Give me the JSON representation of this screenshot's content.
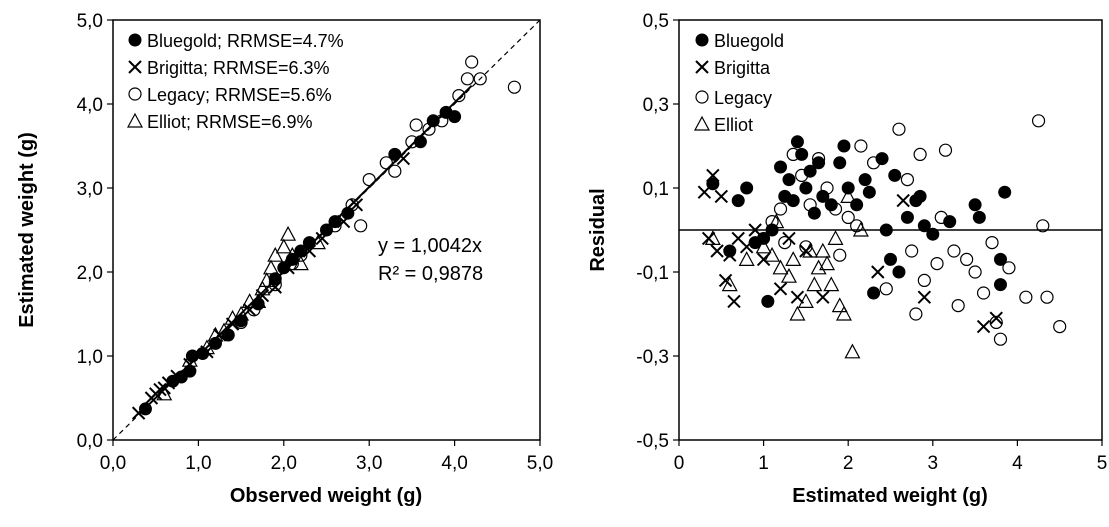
{
  "chart_data": [
    {
      "type": "scatter",
      "xlabel": "Observed weight (g)",
      "ylabel": "Estimated weight (g)",
      "xlim": [
        0,
        5
      ],
      "ylim": [
        0,
        5
      ],
      "xticks": [
        "0,0",
        "1,0",
        "2,0",
        "3,0",
        "4,0",
        "5,0"
      ],
      "yticks": [
        "0,0",
        "1,0",
        "2,0",
        "3,0",
        "4,0",
        "5,0"
      ],
      "grid": false,
      "legend_position": "top-left",
      "annotation": [
        "y = 1,0042x",
        "R² = 0,9878"
      ],
      "reference_line": {
        "style": "dashed",
        "slope": 1
      },
      "fit_line": {
        "style": "solid",
        "slope": 1.0042
      },
      "series": [
        {
          "name": "Bluegold; RRMSE=4.7%",
          "marker": "filled-circle",
          "points": [
            [
              0.38,
              0.37
            ],
            [
              0.7,
              0.7
            ],
            [
              0.8,
              0.75
            ],
            [
              0.9,
              0.82
            ],
            [
              0.93,
              1.0
            ],
            [
              1.05,
              1.03
            ],
            [
              1.2,
              1.15
            ],
            [
              1.35,
              1.25
            ],
            [
              1.5,
              1.42
            ],
            [
              1.7,
              1.62
            ],
            [
              1.9,
              1.92
            ],
            [
              2.0,
              2.05
            ],
            [
              2.1,
              2.15
            ],
            [
              2.2,
              2.25
            ],
            [
              2.3,
              2.35
            ],
            [
              2.5,
              2.5
            ],
            [
              2.6,
              2.6
            ],
            [
              2.75,
              2.7
            ],
            [
              3.3,
              3.4
            ],
            [
              3.6,
              3.55
            ],
            [
              3.75,
              3.8
            ],
            [
              3.9,
              3.9
            ],
            [
              4.0,
              3.85
            ]
          ]
        },
        {
          "name": "Brigitta; RRMSE=6.3%",
          "marker": "x",
          "points": [
            [
              0.3,
              0.32
            ],
            [
              0.45,
              0.5
            ],
            [
              0.5,
              0.55
            ],
            [
              0.55,
              0.6
            ],
            [
              0.6,
              0.62
            ],
            [
              0.65,
              0.68
            ],
            [
              0.75,
              0.76
            ],
            [
              0.9,
              0.9
            ],
            [
              1.1,
              1.05
            ],
            [
              1.25,
              1.25
            ],
            [
              1.4,
              1.38
            ],
            [
              1.6,
              1.55
            ],
            [
              1.75,
              1.72
            ],
            [
              1.9,
              1.82
            ],
            [
              2.05,
              2.05
            ],
            [
              2.3,
              2.25
            ],
            [
              2.45,
              2.4
            ],
            [
              2.7,
              2.6
            ],
            [
              2.85,
              2.8
            ],
            [
              3.4,
              3.35
            ]
          ]
        },
        {
          "name": "Legacy; RRMSE=5.6%",
          "marker": "open-circle",
          "points": [
            [
              1.5,
              1.4
            ],
            [
              1.65,
              1.55
            ],
            [
              1.9,
              1.85
            ],
            [
              2.1,
              2.1
            ],
            [
              2.2,
              2.2
            ],
            [
              2.6,
              2.55
            ],
            [
              2.8,
              2.8
            ],
            [
              2.9,
              2.55
            ],
            [
              3.0,
              3.1
            ],
            [
              3.2,
              3.3
            ],
            [
              3.3,
              3.2
            ],
            [
              3.5,
              3.55
            ],
            [
              3.55,
              3.75
            ],
            [
              3.7,
              3.7
            ],
            [
              3.85,
              3.8
            ],
            [
              4.05,
              4.1
            ],
            [
              4.15,
              4.3
            ],
            [
              4.2,
              4.5
            ],
            [
              4.3,
              4.3
            ],
            [
              4.7,
              4.2
            ]
          ]
        },
        {
          "name": "Elliot; RRMSE=6.9%",
          "marker": "open-triangle",
          "points": [
            [
              0.6,
              0.55
            ],
            [
              0.9,
              0.95
            ],
            [
              1.1,
              1.1
            ],
            [
              1.2,
              1.25
            ],
            [
              1.3,
              1.3
            ],
            [
              1.4,
              1.45
            ],
            [
              1.5,
              1.5
            ],
            [
              1.6,
              1.65
            ],
            [
              1.7,
              1.65
            ],
            [
              1.75,
              1.8
            ],
            [
              1.8,
              1.9
            ],
            [
              1.85,
              2.05
            ],
            [
              1.9,
              2.2
            ],
            [
              2.0,
              2.3
            ],
            [
              2.05,
              2.45
            ],
            [
              2.1,
              2.2
            ],
            [
              2.2,
              2.1
            ],
            [
              2.4,
              2.35
            ]
          ]
        }
      ]
    },
    {
      "type": "scatter",
      "xlabel": "Estimated weight (g)",
      "ylabel": "Residual",
      "xlim": [
        0,
        5
      ],
      "ylim": [
        -0.5,
        0.5
      ],
      "xticks": [
        "0",
        "1",
        "2",
        "3",
        "4",
        "5"
      ],
      "yticks": [
        "-0,5",
        "-0,3",
        "-0,1",
        "0,1",
        "0,3",
        "0,5"
      ],
      "grid": false,
      "legend_position": "top-left",
      "reference_line": {
        "style": "solid",
        "y": 0
      },
      "series": [
        {
          "name": "Bluegold",
          "marker": "filled-circle",
          "points": [
            [
              0.4,
              0.11
            ],
            [
              0.6,
              -0.05
            ],
            [
              0.7,
              0.07
            ],
            [
              0.8,
              0.1
            ],
            [
              0.9,
              -0.03
            ],
            [
              1.0,
              -0.02
            ],
            [
              1.05,
              -0.17
            ],
            [
              1.1,
              0.0
            ],
            [
              1.2,
              0.15
            ],
            [
              1.25,
              0.08
            ],
            [
              1.3,
              0.12
            ],
            [
              1.35,
              0.07
            ],
            [
              1.4,
              0.21
            ],
            [
              1.45,
              0.18
            ],
            [
              1.5,
              0.1
            ],
            [
              1.55,
              0.14
            ],
            [
              1.6,
              0.04
            ],
            [
              1.65,
              0.16
            ],
            [
              1.7,
              0.08
            ],
            [
              1.8,
              0.06
            ],
            [
              1.9,
              0.16
            ],
            [
              1.95,
              0.2
            ],
            [
              2.0,
              0.1
            ],
            [
              2.1,
              0.06
            ],
            [
              2.2,
              0.12
            ],
            [
              2.25,
              0.09
            ],
            [
              2.3,
              -0.15
            ],
            [
              2.4,
              0.17
            ],
            [
              2.45,
              0.0
            ],
            [
              2.5,
              -0.07
            ],
            [
              2.55,
              0.13
            ],
            [
              2.6,
              -0.1
            ],
            [
              2.7,
              0.03
            ],
            [
              2.8,
              0.07
            ],
            [
              2.85,
              0.08
            ],
            [
              2.9,
              0.01
            ],
            [
              3.0,
              -0.01
            ],
            [
              3.2,
              0.02
            ],
            [
              3.5,
              0.06
            ],
            [
              3.55,
              0.03
            ],
            [
              3.8,
              -0.07
            ],
            [
              3.85,
              0.09
            ],
            [
              3.8,
              -0.13
            ]
          ]
        },
        {
          "name": "Brigitta",
          "marker": "x",
          "points": [
            [
              0.3,
              0.09
            ],
            [
              0.35,
              -0.02
            ],
            [
              0.4,
              0.13
            ],
            [
              0.45,
              -0.05
            ],
            [
              0.5,
              0.08
            ],
            [
              0.55,
              -0.12
            ],
            [
              0.6,
              -0.06
            ],
            [
              0.65,
              -0.17
            ],
            [
              0.7,
              -0.02
            ],
            [
              0.8,
              -0.04
            ],
            [
              0.9,
              0.0
            ],
            [
              1.0,
              -0.07
            ],
            [
              1.2,
              -0.14
            ],
            [
              1.3,
              -0.02
            ],
            [
              1.4,
              -0.16
            ],
            [
              1.5,
              -0.05
            ],
            [
              1.7,
              -0.16
            ],
            [
              2.35,
              -0.1
            ],
            [
              2.65,
              0.07
            ],
            [
              2.9,
              -0.16
            ],
            [
              3.6,
              -0.23
            ],
            [
              3.75,
              -0.21
            ]
          ]
        },
        {
          "name": "Legacy",
          "marker": "open-circle",
          "points": [
            [
              1.1,
              0.02
            ],
            [
              1.2,
              0.05
            ],
            [
              1.25,
              -0.03
            ],
            [
              1.35,
              0.18
            ],
            [
              1.45,
              0.13
            ],
            [
              1.5,
              -0.04
            ],
            [
              1.55,
              0.06
            ],
            [
              1.65,
              0.17
            ],
            [
              1.75,
              0.1
            ],
            [
              1.85,
              0.05
            ],
            [
              1.9,
              -0.06
            ],
            [
              2.0,
              0.03
            ],
            [
              2.1,
              0.01
            ],
            [
              2.15,
              0.2
            ],
            [
              2.3,
              0.16
            ],
            [
              2.45,
              -0.14
            ],
            [
              2.6,
              0.24
            ],
            [
              2.7,
              0.12
            ],
            [
              2.75,
              -0.05
            ],
            [
              2.8,
              -0.2
            ],
            [
              2.85,
              0.18
            ],
            [
              2.9,
              -0.12
            ],
            [
              3.05,
              -0.08
            ],
            [
              3.1,
              0.03
            ],
            [
              3.15,
              0.19
            ],
            [
              3.25,
              -0.05
            ],
            [
              3.3,
              -0.18
            ],
            [
              3.4,
              -0.07
            ],
            [
              3.5,
              -0.1
            ],
            [
              3.6,
              -0.15
            ],
            [
              3.7,
              -0.03
            ],
            [
              3.75,
              -0.22
            ],
            [
              3.8,
              -0.26
            ],
            [
              3.9,
              -0.09
            ],
            [
              4.1,
              -0.16
            ],
            [
              4.25,
              0.26
            ],
            [
              4.3,
              0.01
            ],
            [
              4.35,
              -0.16
            ],
            [
              4.5,
              -0.23
            ]
          ]
        },
        {
          "name": "Elliot",
          "marker": "open-triangle",
          "points": [
            [
              0.4,
              -0.02
            ],
            [
              0.6,
              -0.13
            ],
            [
              0.8,
              -0.07
            ],
            [
              1.0,
              -0.04
            ],
            [
              1.1,
              -0.06
            ],
            [
              1.15,
              0.02
            ],
            [
              1.2,
              -0.09
            ],
            [
              1.3,
              -0.11
            ],
            [
              1.35,
              -0.07
            ],
            [
              1.4,
              -0.2
            ],
            [
              1.5,
              -0.17
            ],
            [
              1.55,
              -0.05
            ],
            [
              1.6,
              -0.13
            ],
            [
              1.65,
              -0.09
            ],
            [
              1.7,
              -0.05
            ],
            [
              1.75,
              -0.08
            ],
            [
              1.8,
              -0.13
            ],
            [
              1.85,
              -0.02
            ],
            [
              1.9,
              -0.18
            ],
            [
              1.95,
              -0.2
            ],
            [
              2.0,
              0.08
            ],
            [
              2.05,
              -0.29
            ],
            [
              2.15,
              0.0
            ]
          ]
        }
      ]
    }
  ],
  "legend_left": {
    "items": [
      "Bluegold; RRMSE=4.7%",
      "Brigitta; RRMSE=6.3%",
      "Legacy; RRMSE=5.6%",
      "Elliot; RRMSE=6.9%"
    ]
  },
  "legend_right": {
    "items": [
      "Bluegold",
      "Brigitta",
      "Legacy",
      "Elliot"
    ]
  }
}
